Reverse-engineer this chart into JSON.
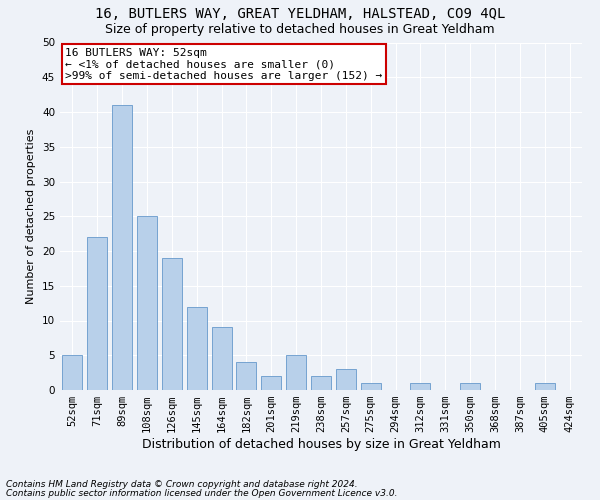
{
  "title1": "16, BUTLERS WAY, GREAT YELDHAM, HALSTEAD, CO9 4QL",
  "title2": "Size of property relative to detached houses in Great Yeldham",
  "xlabel": "Distribution of detached houses by size in Great Yeldham",
  "ylabel": "Number of detached properties",
  "categories": [
    "52sqm",
    "71sqm",
    "89sqm",
    "108sqm",
    "126sqm",
    "145sqm",
    "164sqm",
    "182sqm",
    "201sqm",
    "219sqm",
    "238sqm",
    "257sqm",
    "275sqm",
    "294sqm",
    "312sqm",
    "331sqm",
    "350sqm",
    "368sqm",
    "387sqm",
    "405sqm",
    "424sqm"
  ],
  "values": [
    5,
    22,
    41,
    25,
    19,
    12,
    9,
    4,
    2,
    5,
    2,
    3,
    1,
    0,
    1,
    0,
    1,
    0,
    0,
    1,
    0
  ],
  "bar_color": "#b8d0ea",
  "bar_edge_color": "#6699cc",
  "ylim": [
    0,
    50
  ],
  "yticks": [
    0,
    5,
    10,
    15,
    20,
    25,
    30,
    35,
    40,
    45,
    50
  ],
  "annotation_line1": "16 BUTLERS WAY: 52sqm",
  "annotation_line2": "← <1% of detached houses are smaller (0)",
  "annotation_line3": ">99% of semi-detached houses are larger (152) →",
  "annotation_box_color": "#ffffff",
  "annotation_border_color": "#cc0000",
  "footnote1": "Contains HM Land Registry data © Crown copyright and database right 2024.",
  "footnote2": "Contains public sector information licensed under the Open Government Licence v3.0.",
  "background_color": "#eef2f8",
  "grid_color": "#ffffff",
  "title1_fontsize": 10,
  "title2_fontsize": 9,
  "xlabel_fontsize": 9,
  "ylabel_fontsize": 8,
  "tick_fontsize": 7.5,
  "annotation_fontsize": 8,
  "footnote_fontsize": 6.5
}
